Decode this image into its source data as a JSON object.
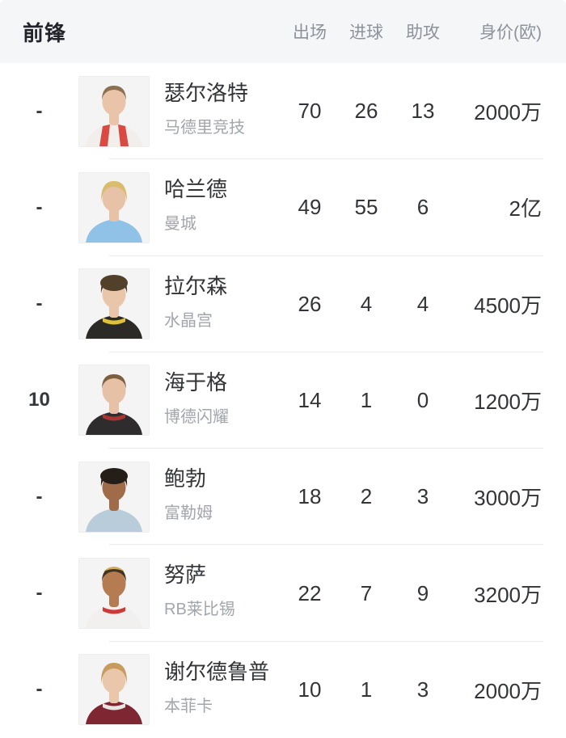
{
  "header": {
    "title": "前锋",
    "bg_color": "#f5f6f8",
    "title_color": "#21242a",
    "label_color": "#8d929b",
    "columns": [
      {
        "key": "appearances",
        "label": "出场"
      },
      {
        "key": "goals",
        "label": "进球"
      },
      {
        "key": "assists",
        "label": "助攻"
      },
      {
        "key": "market-value",
        "label": "身价(欧)"
      }
    ]
  },
  "table": {
    "divider_color": "#ebebeb",
    "rank_color": "#35383d",
    "name_color": "#323438",
    "team_color": "#a2a6ac",
    "stat_color": "#323438",
    "photo_border": "#eeeeee",
    "photo_bg": "#f4f4f4",
    "rows": [
      {
        "rank": "-",
        "name": "瑟尔洛特",
        "team": "马德里竞技",
        "appearances": "70",
        "goals": "26",
        "assists": "13",
        "value": "2000万",
        "avatar": {
          "skin": "#e9c4a8",
          "hair": "#8b7052",
          "hair2": null,
          "shirt": "#f1eeec",
          "accent": "#d84a42",
          "style": "stripes",
          "hairstyle": "short"
        }
      },
      {
        "rank": "-",
        "name": "哈兰德",
        "team": "曼城",
        "appearances": "49",
        "goals": "55",
        "assists": "6",
        "value": "2亿",
        "avatar": {
          "skin": "#e7c2a6",
          "hair": "#d9bc6d",
          "hair2": null,
          "shirt": "#8fc2e6",
          "accent": "#7fb5dc",
          "style": "plain",
          "hairstyle": "long"
        }
      },
      {
        "rank": "-",
        "name": "拉尔森",
        "team": "水晶宫",
        "appearances": "26",
        "goals": "4",
        "assists": "4",
        "value": "4500万",
        "avatar": {
          "skin": "#e9c6aa",
          "hair": "#53402a",
          "hair2": null,
          "shirt": "#2c2a26",
          "accent": "#e0c23a",
          "style": "trim",
          "hairstyle": "curly"
        }
      },
      {
        "rank": "10",
        "name": "海于格",
        "team": "博德闪耀",
        "appearances": "14",
        "goals": "1",
        "assists": "0",
        "value": "1200万",
        "avatar": {
          "skin": "#e6c1a5",
          "hair": "#7d5f3f",
          "hair2": null,
          "shirt": "#2e2c2c",
          "accent": "#a83434",
          "style": "trim",
          "hairstyle": "short"
        }
      },
      {
        "rank": "-",
        "name": "鲍勃",
        "team": "富勒姆",
        "appearances": "18",
        "goals": "2",
        "assists": "3",
        "value": "3000万",
        "avatar": {
          "skin": "#a06b48",
          "hair": "#241d18",
          "hair2": null,
          "shirt": "#b9ccda",
          "accent": "#aabfcf",
          "style": "plain",
          "hairstyle": "curly"
        }
      },
      {
        "rank": "-",
        "name": "努萨",
        "team": "RB莱比锡",
        "appearances": "22",
        "goals": "7",
        "assists": "9",
        "value": "3200万",
        "avatar": {
          "skin": "#b57c52",
          "hair": "#42331f",
          "hair2": "#d2ac5e",
          "shirt": "#f2f0ee",
          "accent": "#cc3a36",
          "style": "trim",
          "hairstyle": "short"
        }
      },
      {
        "rank": "-",
        "name": "谢尔德鲁普",
        "team": "本菲卡",
        "appearances": "10",
        "goals": "1",
        "assists": "3",
        "value": "2000万",
        "avatar": {
          "skin": "#eac7ab",
          "hair": "#c79b5e",
          "hair2": null,
          "shirt": "#7e2733",
          "accent": "#e8e4e2",
          "style": "trim",
          "hairstyle": "long"
        }
      }
    ]
  }
}
